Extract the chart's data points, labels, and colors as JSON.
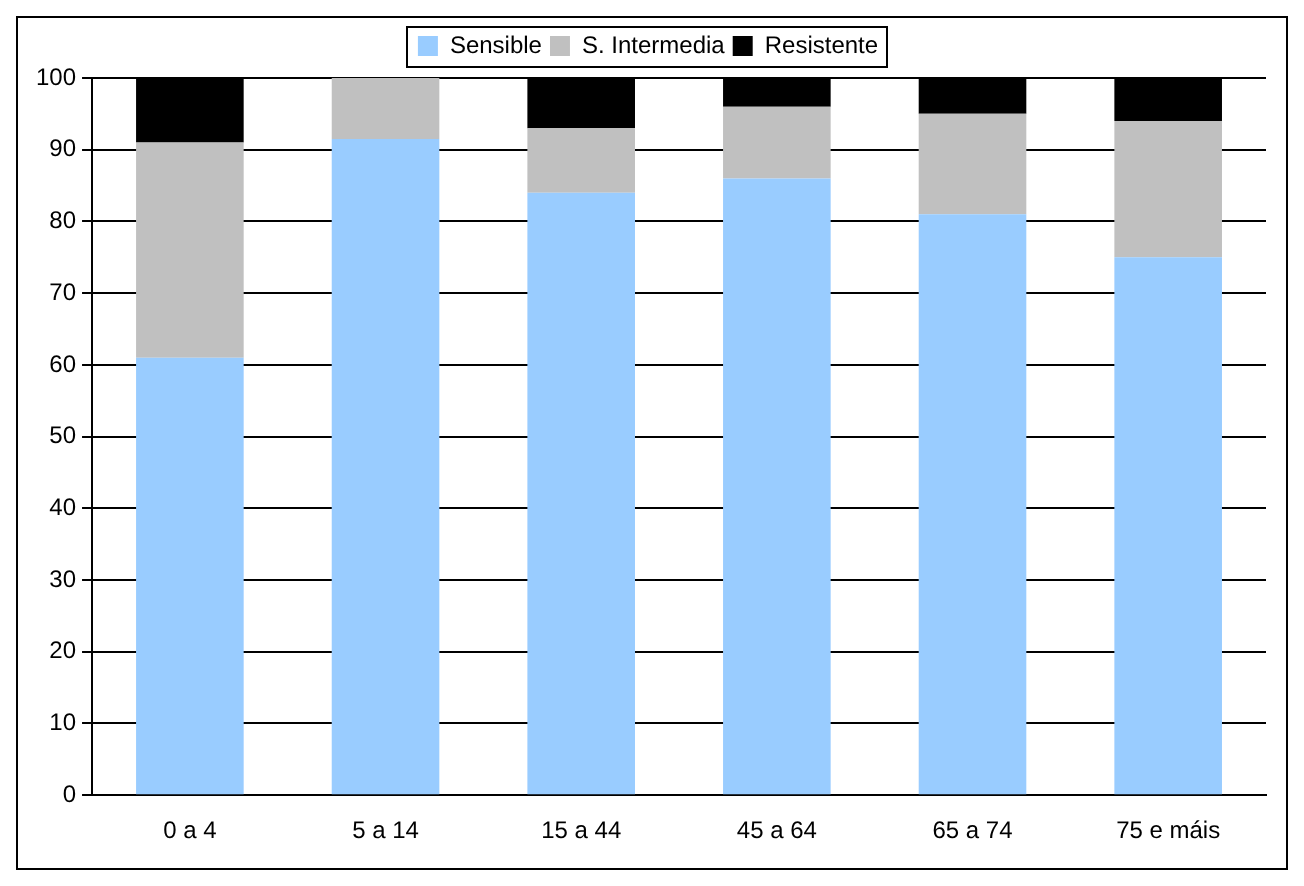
{
  "chart_data": {
    "type": "bar",
    "stacked": true,
    "categories": [
      "0 a 4",
      "5 a 14",
      "15 a 44",
      "45 a 64",
      "65 a 74",
      "75 e máis"
    ],
    "series": [
      {
        "name": "Sensible",
        "color": "#99ccff",
        "values": [
          61,
          91.5,
          84,
          86,
          81,
          75
        ]
      },
      {
        "name": "S. Intermedia",
        "color": "#c0c0c0",
        "values": [
          30,
          8.5,
          9,
          10,
          14,
          19
        ]
      },
      {
        "name": "Resistente",
        "color": "#000000",
        "values": [
          9,
          0,
          7,
          4,
          5,
          6
        ]
      }
    ],
    "ylim": [
      0,
      100
    ],
    "yticks": [
      0,
      10,
      20,
      30,
      40,
      50,
      60,
      70,
      80,
      90,
      100
    ],
    "grid": "y",
    "legend": "top"
  }
}
